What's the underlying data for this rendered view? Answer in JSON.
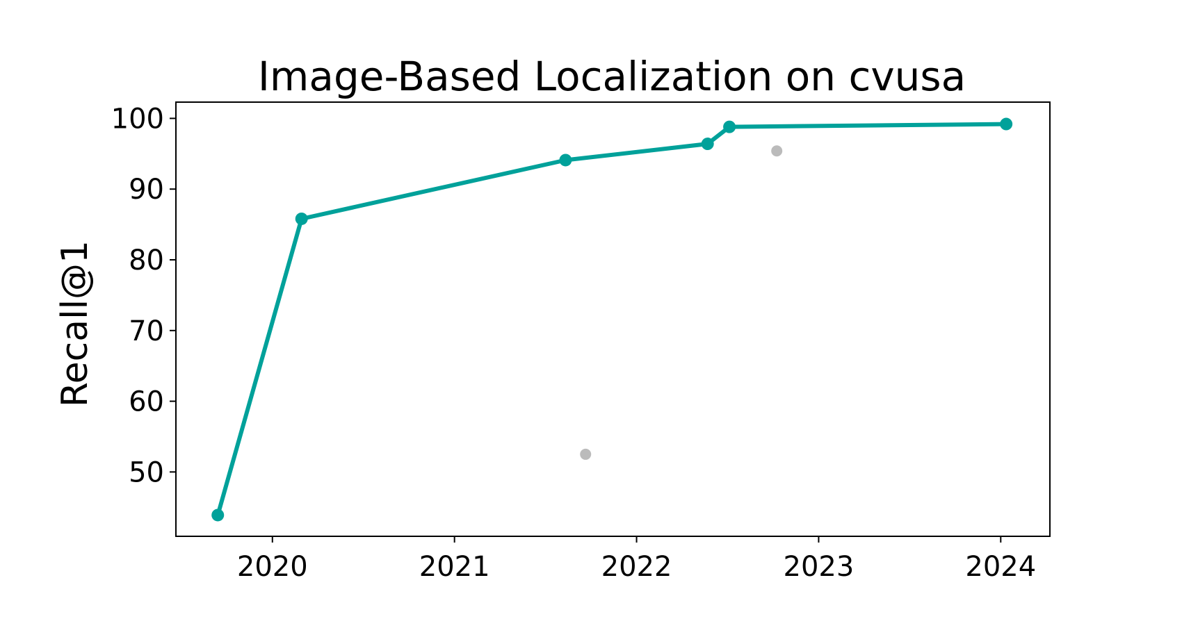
{
  "chart_data": {
    "type": "line",
    "title": "Image-Based Localization on cvusa",
    "xlabel": "",
    "ylabel": "Recall@1",
    "xlim": [
      2019.47,
      2024.27
    ],
    "ylim": [
      40.9,
      102.3
    ],
    "x_ticks": [
      2020,
      2021,
      2022,
      2023,
      2024
    ],
    "y_ticks": [
      50,
      60,
      70,
      80,
      90,
      100
    ],
    "grid": false,
    "legend": "none",
    "series": [
      {
        "role": "state-of-the-art",
        "color": "#00a19a",
        "style": "line+markers",
        "points": [
          {
            "x": 2019.7,
            "y": 43.9
          },
          {
            "x": 2020.16,
            "y": 85.8
          },
          {
            "x": 2021.61,
            "y": 94.1
          },
          {
            "x": 2022.39,
            "y": 96.4
          },
          {
            "x": 2022.51,
            "y": 98.8
          },
          {
            "x": 2024.03,
            "y": 99.2
          }
        ]
      },
      {
        "role": "other-results",
        "color": "#bbbbbb",
        "style": "markers",
        "points": [
          {
            "x": 2021.72,
            "y": 52.5
          },
          {
            "x": 2022.77,
            "y": 95.4
          }
        ]
      }
    ]
  }
}
